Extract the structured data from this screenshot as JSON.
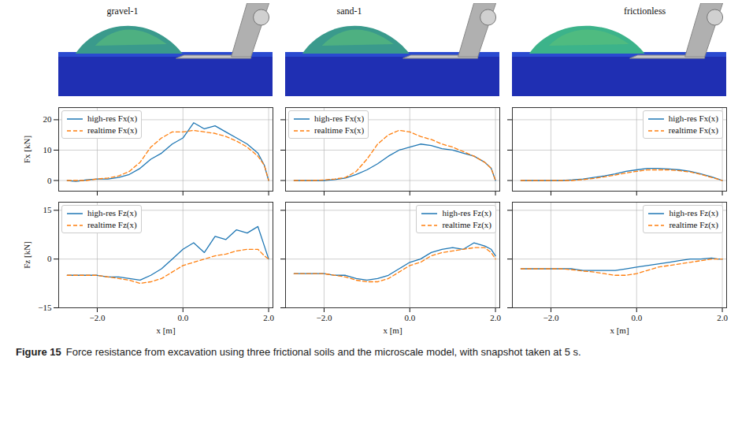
{
  "panel_titles": [
    "gravel-1",
    "sand-1",
    "frictionless"
  ],
  "caption_label": "Figure 15",
  "caption": "Force resistance from excavation using three frictional soils and the microscale model, with snapshot taken at 5 s.",
  "chart_data": [
    {
      "type": "line",
      "ylabel": "Fx [kN]",
      "x": [
        -2.7,
        -2.5,
        -2.25,
        -2.0,
        -1.75,
        -1.5,
        -1.25,
        -1.0,
        -0.75,
        -0.5,
        -0.25,
        0.0,
        0.25,
        0.5,
        0.75,
        1.0,
        1.25,
        1.5,
        1.75,
        1.9,
        2.0
      ],
      "series": [
        {
          "name": "high-res Fx(x)",
          "color": "#1f77b4",
          "line_style": "solid",
          "values": [
            0,
            -0.3,
            0.2,
            0.5,
            0.5,
            1,
            2,
            4,
            7,
            9,
            12,
            14,
            19,
            17,
            18,
            16,
            14,
            12,
            9,
            5,
            0
          ]
        },
        {
          "name": "realtime Fx(x)",
          "color": "#ff7f0e",
          "line_style": "dashed",
          "values": [
            0,
            0,
            0,
            0.5,
            0.8,
            1.5,
            3,
            6,
            11,
            14,
            16,
            16,
            16.5,
            16,
            15.5,
            14.5,
            13,
            11,
            8,
            5,
            0
          ]
        }
      ],
      "xlim": [
        -2.9,
        2.1
      ],
      "ylim": [
        -3.5,
        24
      ],
      "xticks": [
        -2,
        0,
        2
      ],
      "yticks": [
        0,
        10,
        20
      ],
      "grid": true,
      "legend": "upper left",
      "tick_labels": "y"
    },
    {
      "type": "line",
      "x": [
        -2.7,
        -2.5,
        -2.25,
        -2.0,
        -1.75,
        -1.5,
        -1.25,
        -1.0,
        -0.75,
        -0.5,
        -0.25,
        0.0,
        0.25,
        0.5,
        0.75,
        1.0,
        1.25,
        1.5,
        1.75,
        1.9,
        2.0
      ],
      "series": [
        {
          "name": "high-res Fx(x)",
          "color": "#1f77b4",
          "line_style": "solid",
          "values": [
            0,
            0,
            0,
            0,
            0.3,
            0.8,
            2,
            3.5,
            5.5,
            8,
            10,
            11,
            12,
            11.5,
            10.5,
            10,
            9,
            8,
            6,
            4,
            0
          ]
        },
        {
          "name": "realtime Fx(x)",
          "color": "#ff7f0e",
          "line_style": "dashed",
          "values": [
            0,
            0,
            0,
            0.2,
            0.5,
            1,
            3,
            7,
            12,
            15,
            16.5,
            16,
            14.5,
            13.5,
            12,
            11,
            9.5,
            8,
            6,
            4,
            0
          ]
        }
      ],
      "xlim": [
        -2.9,
        2.1
      ],
      "ylim": [
        -3.5,
        24
      ],
      "xticks": [
        -2,
        0,
        2
      ],
      "yticks": [
        0,
        10,
        20
      ],
      "grid": true,
      "legend": "upper left",
      "tick_labels": false
    },
    {
      "type": "line",
      "x": [
        -2.7,
        -2.5,
        -2.25,
        -2.0,
        -1.75,
        -1.5,
        -1.25,
        -1.0,
        -0.75,
        -0.5,
        -0.25,
        0.0,
        0.25,
        0.5,
        0.75,
        1.0,
        1.25,
        1.5,
        1.75,
        1.9,
        2.0
      ],
      "series": [
        {
          "name": "high-res Fx(x)",
          "color": "#1f77b4",
          "line_style": "solid",
          "values": [
            0,
            0,
            0,
            0,
            0,
            0.2,
            0.5,
            1,
            1.5,
            2.2,
            3,
            3.5,
            4,
            4,
            3.8,
            3.5,
            3,
            2.2,
            1.2,
            0.5,
            0
          ]
        },
        {
          "name": "realtime Fx(x)",
          "color": "#ff7f0e",
          "line_style": "dashed",
          "values": [
            0,
            0,
            0,
            0,
            0,
            0,
            0.3,
            0.7,
            1.2,
            1.8,
            2.5,
            3,
            3.5,
            3.5,
            3.5,
            3.2,
            2.8,
            2,
            1,
            0.4,
            0
          ]
        }
      ],
      "xlim": [
        -2.9,
        2.1
      ],
      "ylim": [
        -3.5,
        24
      ],
      "xticks": [
        -2,
        0,
        2
      ],
      "yticks": [
        0,
        10,
        20
      ],
      "grid": true,
      "legend": "upper right",
      "tick_labels": false
    },
    {
      "type": "line",
      "xlabel": "x [m]",
      "ylabel": "Fz [kN]",
      "x": [
        -2.7,
        -2.5,
        -2.25,
        -2.0,
        -1.75,
        -1.5,
        -1.25,
        -1.0,
        -0.75,
        -0.5,
        -0.25,
        0.0,
        0.25,
        0.5,
        0.75,
        1.0,
        1.25,
        1.5,
        1.75,
        1.9,
        2.0
      ],
      "series": [
        {
          "name": "high-res Fz(x)",
          "color": "#1f77b4",
          "line_style": "solid",
          "values": [
            -5,
            -5,
            -5,
            -5,
            -5.5,
            -5.5,
            -6,
            -6.5,
            -5,
            -3,
            0,
            3,
            5,
            2,
            7,
            6,
            9,
            8,
            10,
            4,
            0
          ]
        },
        {
          "name": "realtime Fz(x)",
          "color": "#ff7f0e",
          "line_style": "dashed",
          "values": [
            -5,
            -5,
            -5,
            -5,
            -5.5,
            -6,
            -6.5,
            -7.5,
            -7,
            -6,
            -4,
            -2,
            -1,
            0,
            1,
            1.5,
            2.5,
            3,
            3,
            1,
            0
          ]
        }
      ],
      "xlim": [
        -2.9,
        2.1
      ],
      "ylim": [
        -15,
        17.5
      ],
      "xticks": [
        -2,
        0,
        2
      ],
      "yticks": [
        -15,
        0,
        15
      ],
      "grid": true,
      "legend": "upper left",
      "tick_labels": true
    },
    {
      "type": "line",
      "xlabel": "x [m]",
      "x": [
        -2.7,
        -2.5,
        -2.25,
        -2.0,
        -1.75,
        -1.5,
        -1.25,
        -1.0,
        -0.75,
        -0.5,
        -0.25,
        0.0,
        0.25,
        0.5,
        0.75,
        1.0,
        1.25,
        1.5,
        1.75,
        1.9,
        2.0
      ],
      "series": [
        {
          "name": "high-res Fz(x)",
          "color": "#1f77b4",
          "line_style": "solid",
          "values": [
            -4.5,
            -4.5,
            -4.5,
            -4.5,
            -5,
            -5,
            -6,
            -6.5,
            -6,
            -5,
            -3,
            -1,
            0,
            2,
            3,
            3.5,
            3,
            5,
            4,
            3,
            1
          ]
        },
        {
          "name": "realtime Fz(x)",
          "color": "#ff7f0e",
          "line_style": "dashed",
          "values": [
            -4.5,
            -4.5,
            -4.5,
            -4.5,
            -5,
            -5.5,
            -6.5,
            -7,
            -7,
            -6,
            -4,
            -2,
            -1,
            1,
            2,
            2.5,
            3,
            3.5,
            3.5,
            2,
            0
          ]
        }
      ],
      "xlim": [
        -2.9,
        2.1
      ],
      "ylim": [
        -15,
        17.5
      ],
      "xticks": [
        -2,
        0,
        2
      ],
      "yticks": [
        -15,
        0,
        15
      ],
      "grid": true,
      "legend": "upper right",
      "tick_labels": "x"
    },
    {
      "type": "line",
      "xlabel": "x [m]",
      "x": [
        -2.7,
        -2.5,
        -2.25,
        -2.0,
        -1.75,
        -1.5,
        -1.25,
        -1.0,
        -0.75,
        -0.5,
        -0.25,
        0.0,
        0.25,
        0.5,
        0.75,
        1.0,
        1.25,
        1.5,
        1.75,
        1.9,
        2.0
      ],
      "series": [
        {
          "name": "high-res Fz(x)",
          "color": "#1f77b4",
          "line_style": "solid",
          "values": [
            -3,
            -3,
            -3,
            -3,
            -3,
            -3,
            -3.5,
            -3.5,
            -3.5,
            -3.5,
            -3,
            -2.5,
            -2,
            -1.5,
            -1,
            -0.5,
            0,
            0,
            0.3,
            0,
            0
          ]
        },
        {
          "name": "realtime Fz(x)",
          "color": "#ff7f0e",
          "line_style": "dashed",
          "values": [
            -3,
            -3,
            -3,
            -3,
            -3,
            -3.3,
            -3.7,
            -4,
            -4.5,
            -5,
            -5,
            -4.5,
            -3.5,
            -2.5,
            -2,
            -1.5,
            -1,
            -0.5,
            0,
            0,
            0
          ]
        }
      ],
      "xlim": [
        -2.9,
        2.1
      ],
      "ylim": [
        -15,
        17.5
      ],
      "xticks": [
        -2,
        0,
        2
      ],
      "yticks": [
        -15,
        0,
        15
      ],
      "grid": true,
      "legend": "upper right",
      "tick_labels": "x"
    }
  ]
}
